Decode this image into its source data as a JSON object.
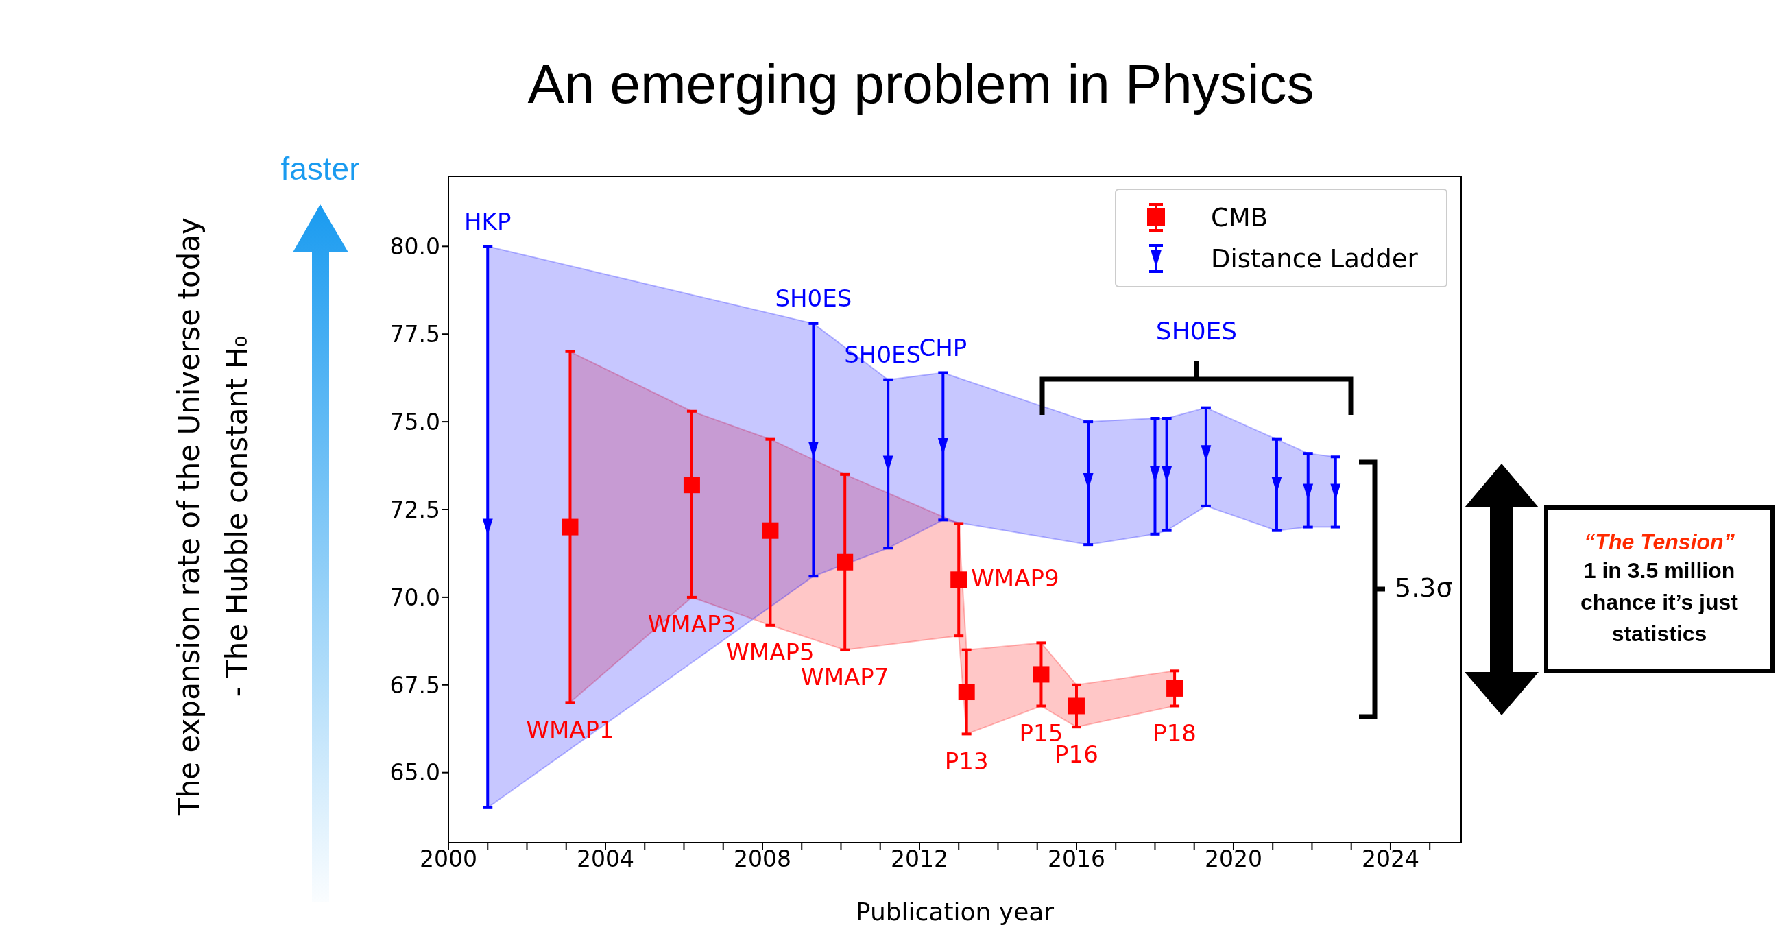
{
  "chart_data": {
    "type": "scatter",
    "title": "An emerging problem in Physics",
    "xlabel": "Publication year",
    "ylabel": "The expansion rate of the Universe today\n- The Hubble constant H₀",
    "xlim": [
      2000,
      2025.8
    ],
    "ylim": [
      63,
      82
    ],
    "xticks": [
      2000,
      {
        "value": 2001,
        "label": null
      },
      {
        "value": 2002,
        "label": null
      },
      {
        "value": 2003,
        "label": null
      },
      2004,
      {
        "value": 2005,
        "label": null
      },
      {
        "value": 2006,
        "label": null
      },
      {
        "value": 2007,
        "label": null
      },
      2008,
      {
        "value": 2009,
        "label": null
      },
      {
        "value": 2010,
        "label": null
      },
      {
        "value": 2011,
        "label": null
      },
      2012,
      {
        "value": 2013,
        "label": null
      },
      {
        "value": 2014,
        "label": null
      },
      {
        "value": 2015,
        "label": null
      },
      2016,
      {
        "value": 2017,
        "label": null
      },
      {
        "value": 2018,
        "label": null
      },
      {
        "value": 2019,
        "label": null
      },
      2020,
      {
        "value": 2021,
        "label": null
      },
      {
        "value": 2022,
        "label": null
      },
      {
        "value": 2023,
        "label": null
      },
      2024,
      {
        "value": 2025,
        "label": null
      }
    ],
    "yticks": [
      {
        "value": 65,
        "label": "65.0"
      },
      {
        "value": 67.5,
        "label": "67.5"
      },
      {
        "value": 70,
        "label": "70.0"
      },
      {
        "value": 72.5,
        "label": "72.5"
      },
      {
        "value": 75,
        "label": "75.0"
      },
      {
        "value": 77.5,
        "label": "77.5"
      },
      {
        "value": 80,
        "label": "80.0"
      }
    ],
    "legend": "top right",
    "series": [
      {
        "name": "CMB",
        "color": "#ff0000",
        "marker": "square",
        "x": [
          2003.1,
          2006.2,
          2008.2,
          2010.1,
          2013.0,
          2013.2,
          2015.1,
          2016.0,
          2018.5
        ],
        "values": [
          72.0,
          73.2,
          71.9,
          71.0,
          70.5,
          67.3,
          67.8,
          66.9,
          67.4
        ],
        "errors": [
          [
            67.0,
            77.0
          ],
          [
            70.0,
            75.3
          ],
          [
            69.2,
            74.5
          ],
          [
            68.5,
            73.5
          ],
          [
            68.9,
            72.1
          ],
          [
            66.1,
            68.5
          ],
          [
            66.9,
            68.7
          ],
          [
            66.3,
            67.5
          ],
          [
            66.9,
            67.9
          ]
        ],
        "lower": [
          67.0,
          70.0,
          69.2,
          68.5,
          68.9,
          66.1,
          66.9,
          66.3,
          66.9
        ],
        "upper": [
          77.0,
          75.3,
          74.5,
          73.5,
          72.1,
          68.5,
          68.7,
          67.5,
          67.9
        ]
      },
      {
        "name": "Distance Ladder",
        "color": "#0000ff",
        "marker": "triangle",
        "x": [
          2001.0,
          2009.3,
          2011.2,
          2012.6,
          2016.3,
          2018.0,
          2018.3,
          2019.3,
          2021.1,
          2021.9,
          2022.6
        ],
        "values": [
          72.0,
          74.2,
          73.8,
          74.3,
          73.3,
          73.5,
          73.5,
          74.1,
          73.2,
          73.0,
          73.0
        ],
        "errors": [
          [
            64.0,
            80.0
          ],
          [
            70.6,
            77.8
          ],
          [
            71.4,
            76.2
          ],
          [
            72.2,
            76.4
          ],
          [
            71.5,
            75.0
          ],
          [
            71.8,
            75.1
          ],
          [
            71.9,
            75.1
          ],
          [
            72.6,
            75.4
          ],
          [
            71.9,
            74.5
          ],
          [
            72.0,
            74.1
          ],
          [
            72.0,
            74.0
          ]
        ],
        "lower": [
          64.0,
          70.6,
          71.4,
          72.2,
          71.5,
          71.8,
          71.9,
          72.6,
          71.9,
          72.0,
          72.0
        ],
        "upper": [
          80.0,
          77.8,
          76.2,
          76.4,
          75.0,
          75.1,
          75.1,
          75.4,
          74.5,
          74.1,
          74.0
        ]
      }
    ],
    "annotations": [
      {
        "text": "HKP",
        "x": 2001.0,
        "y": 80.0
      },
      {
        "text": "SH0ES",
        "x": 2009.3,
        "y": 77.8
      },
      {
        "text": "SH0ES",
        "x": 2011.2,
        "y": 76.2
      },
      {
        "text": "CHP",
        "x": 2012.6,
        "y": 76.4
      },
      "SH0ES",
      {
        "text": "WMAP1",
        "x": 2003.1,
        "y": 67.0
      },
      {
        "text": "WMAP3",
        "x": 2006.2,
        "y": 70.0
      },
      {
        "text": "WMAP5",
        "x": 2008.2,
        "y": 69.2
      },
      {
        "text": "WMAP7",
        "x": 2010.1,
        "y": 68.5
      },
      {
        "text": "WMAP9",
        "x": 2013.0,
        "y": 70.5
      },
      {
        "text": "P13",
        "x": 2013.2,
        "y": 66.1
      },
      {
        "text": "P15",
        "x": 2015.1,
        "y": 66.9
      },
      {
        "text": "P16",
        "x": 2016.0,
        "y": 66.3
      },
      {
        "text": "P18",
        "x": 2018.5,
        "y": 66.9
      },
      "faster",
      "5.3σ",
      "“The Tension”",
      "1 in 3.5 million chance it’s just statistics"
    ]
  }
}
